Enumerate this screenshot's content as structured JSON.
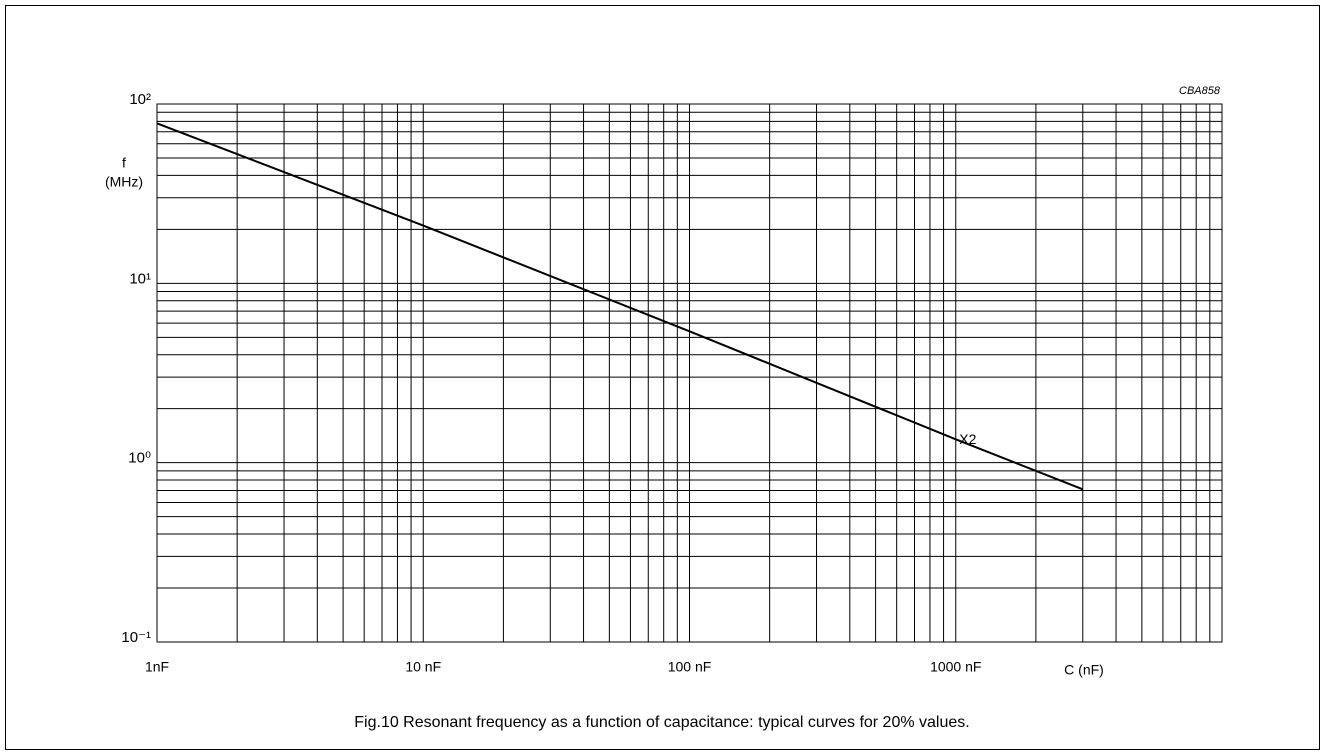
{
  "chart_data": {
    "type": "line",
    "code": "CBA858",
    "caption": "Fig.10  Resonant frequency as a function of capacitance: typical curves for 20% values.",
    "xlabel": "C (nF)",
    "ylabel": [
      "f",
      "(MHz)"
    ],
    "xscale": "log",
    "yscale": "log",
    "grid": true,
    "minor_grid": true,
    "xlim": [
      1,
      10000
    ],
    "ylim": [
      0.1,
      100
    ],
    "xticks": [
      {
        "value": 1,
        "label": "1nF"
      },
      {
        "value": 10,
        "label": "10 nF"
      },
      {
        "value": 100,
        "label": "100 nF"
      },
      {
        "value": 1000,
        "label": "1000 nF"
      }
    ],
    "yticks": [
      {
        "value": 0.1,
        "label": "10⁻¹"
      },
      {
        "value": 1,
        "label": "10⁰"
      },
      {
        "value": 10,
        "label": "10¹"
      },
      {
        "value": 100,
        "label": "10²"
      }
    ],
    "x": [
      1,
      10,
      100,
      1000,
      3000
    ],
    "series": [
      {
        "name": "X2",
        "color": "#000000",
        "values": [
          78,
          21,
          5.4,
          1.35,
          0.71
        ]
      }
    ]
  }
}
